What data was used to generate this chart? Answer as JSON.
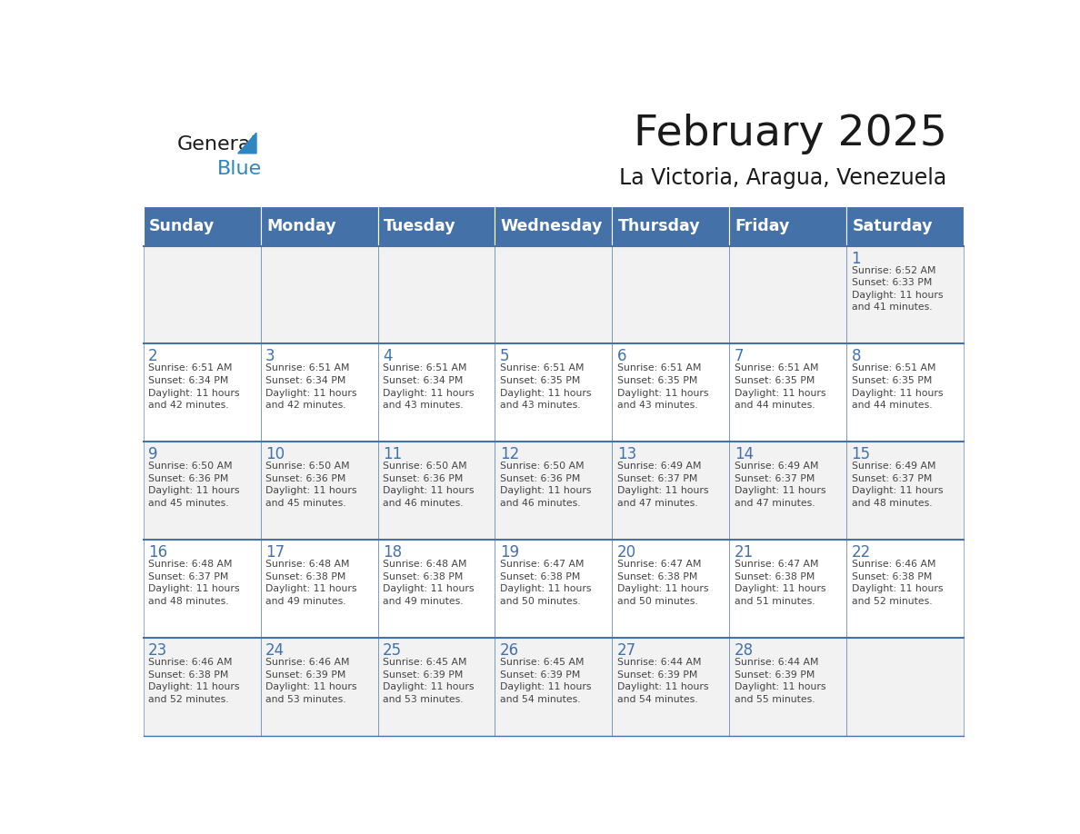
{
  "title": "February 2025",
  "subtitle": "La Victoria, Aragua, Venezuela",
  "days_of_week": [
    "Sunday",
    "Monday",
    "Tuesday",
    "Wednesday",
    "Thursday",
    "Friday",
    "Saturday"
  ],
  "header_bg": "#4472a8",
  "header_text": "#ffffff",
  "cell_bg_light": "#f2f2f2",
  "cell_bg_white": "#ffffff",
  "cell_border": "#4472a8",
  "day_num_color": "#4472a8",
  "text_color": "#444444",
  "title_color": "#1a1a1a",
  "logo_general_color": "#1a1a1a",
  "logo_blue_color": "#2e86c1",
  "calendar_data": [
    [
      null,
      null,
      null,
      null,
      null,
      null,
      {
        "day": 1,
        "sunrise": "6:52 AM",
        "sunset": "6:33 PM",
        "daylight": "11 hours\nand 41 minutes."
      }
    ],
    [
      {
        "day": 2,
        "sunrise": "6:51 AM",
        "sunset": "6:34 PM",
        "daylight": "11 hours\nand 42 minutes."
      },
      {
        "day": 3,
        "sunrise": "6:51 AM",
        "sunset": "6:34 PM",
        "daylight": "11 hours\nand 42 minutes."
      },
      {
        "day": 4,
        "sunrise": "6:51 AM",
        "sunset": "6:34 PM",
        "daylight": "11 hours\nand 43 minutes."
      },
      {
        "day": 5,
        "sunrise": "6:51 AM",
        "sunset": "6:35 PM",
        "daylight": "11 hours\nand 43 minutes."
      },
      {
        "day": 6,
        "sunrise": "6:51 AM",
        "sunset": "6:35 PM",
        "daylight": "11 hours\nand 43 minutes."
      },
      {
        "day": 7,
        "sunrise": "6:51 AM",
        "sunset": "6:35 PM",
        "daylight": "11 hours\nand 44 minutes."
      },
      {
        "day": 8,
        "sunrise": "6:51 AM",
        "sunset": "6:35 PM",
        "daylight": "11 hours\nand 44 minutes."
      }
    ],
    [
      {
        "day": 9,
        "sunrise": "6:50 AM",
        "sunset": "6:36 PM",
        "daylight": "11 hours\nand 45 minutes."
      },
      {
        "day": 10,
        "sunrise": "6:50 AM",
        "sunset": "6:36 PM",
        "daylight": "11 hours\nand 45 minutes."
      },
      {
        "day": 11,
        "sunrise": "6:50 AM",
        "sunset": "6:36 PM",
        "daylight": "11 hours\nand 46 minutes."
      },
      {
        "day": 12,
        "sunrise": "6:50 AM",
        "sunset": "6:36 PM",
        "daylight": "11 hours\nand 46 minutes."
      },
      {
        "day": 13,
        "sunrise": "6:49 AM",
        "sunset": "6:37 PM",
        "daylight": "11 hours\nand 47 minutes."
      },
      {
        "day": 14,
        "sunrise": "6:49 AM",
        "sunset": "6:37 PM",
        "daylight": "11 hours\nand 47 minutes."
      },
      {
        "day": 15,
        "sunrise": "6:49 AM",
        "sunset": "6:37 PM",
        "daylight": "11 hours\nand 48 minutes."
      }
    ],
    [
      {
        "day": 16,
        "sunrise": "6:48 AM",
        "sunset": "6:37 PM",
        "daylight": "11 hours\nand 48 minutes."
      },
      {
        "day": 17,
        "sunrise": "6:48 AM",
        "sunset": "6:38 PM",
        "daylight": "11 hours\nand 49 minutes."
      },
      {
        "day": 18,
        "sunrise": "6:48 AM",
        "sunset": "6:38 PM",
        "daylight": "11 hours\nand 49 minutes."
      },
      {
        "day": 19,
        "sunrise": "6:47 AM",
        "sunset": "6:38 PM",
        "daylight": "11 hours\nand 50 minutes."
      },
      {
        "day": 20,
        "sunrise": "6:47 AM",
        "sunset": "6:38 PM",
        "daylight": "11 hours\nand 50 minutes."
      },
      {
        "day": 21,
        "sunrise": "6:47 AM",
        "sunset": "6:38 PM",
        "daylight": "11 hours\nand 51 minutes."
      },
      {
        "day": 22,
        "sunrise": "6:46 AM",
        "sunset": "6:38 PM",
        "daylight": "11 hours\nand 52 minutes."
      }
    ],
    [
      {
        "day": 23,
        "sunrise": "6:46 AM",
        "sunset": "6:38 PM",
        "daylight": "11 hours\nand 52 minutes."
      },
      {
        "day": 24,
        "sunrise": "6:46 AM",
        "sunset": "6:39 PM",
        "daylight": "11 hours\nand 53 minutes."
      },
      {
        "day": 25,
        "sunrise": "6:45 AM",
        "sunset": "6:39 PM",
        "daylight": "11 hours\nand 53 minutes."
      },
      {
        "day": 26,
        "sunrise": "6:45 AM",
        "sunset": "6:39 PM",
        "daylight": "11 hours\nand 54 minutes."
      },
      {
        "day": 27,
        "sunrise": "6:44 AM",
        "sunset": "6:39 PM",
        "daylight": "11 hours\nand 54 minutes."
      },
      {
        "day": 28,
        "sunrise": "6:44 AM",
        "sunset": "6:39 PM",
        "daylight": "11 hours\nand 55 minutes."
      },
      null
    ]
  ]
}
